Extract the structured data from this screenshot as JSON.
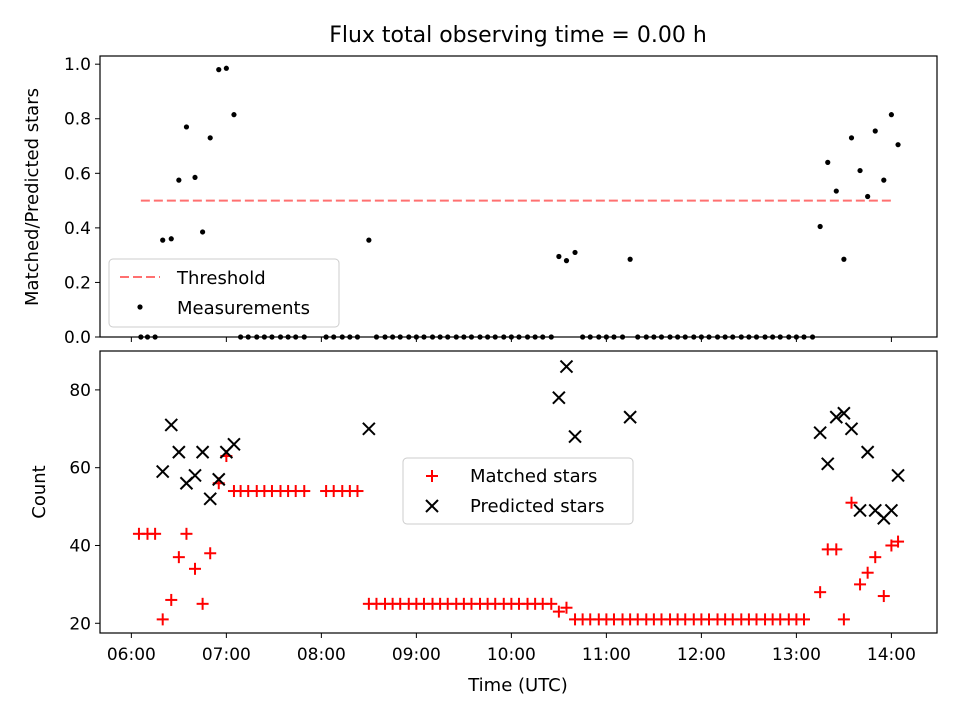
{
  "chart_data": [
    {
      "type": "scatter",
      "title": "Flux total observing time = 0.00 h",
      "ylabel": "Matched/Predicted stars",
      "xlabel": "",
      "xlim_hours": [
        5.67,
        14.48
      ],
      "ylim": [
        0,
        1.03
      ],
      "yticks": [
        "0.0",
        "0.2",
        "0.4",
        "0.6",
        "0.8",
        "1.0"
      ],
      "xticks": [
        "06:00",
        "07:00",
        "08:00",
        "09:00",
        "10:00",
        "11:00",
        "12:00",
        "13:00",
        "14:00"
      ],
      "legend_position": "lower-left",
      "threshold": {
        "name": "Threshold",
        "value": 0.5,
        "x_range_hours": [
          6.1,
          14.0
        ],
        "color": "#ff7070",
        "style": "dashed"
      },
      "measurements": {
        "name": "Measurements",
        "color": "#000000",
        "x_hours": [
          6.1,
          6.17,
          6.25,
          6.33,
          6.42,
          6.5,
          6.58,
          6.67,
          6.75,
          6.83,
          6.92,
          7.0,
          7.08,
          7.15,
          7.23,
          7.32,
          7.4,
          7.48,
          7.57,
          7.65,
          7.73,
          7.82,
          8.05,
          8.13,
          8.22,
          8.3,
          8.38,
          8.5,
          8.58,
          8.67,
          8.75,
          8.83,
          8.92,
          9.0,
          9.08,
          9.17,
          9.25,
          9.33,
          9.42,
          9.5,
          9.58,
          9.67,
          9.75,
          9.83,
          9.92,
          10.0,
          10.08,
          10.17,
          10.25,
          10.33,
          10.42,
          10.5,
          10.58,
          10.67,
          10.75,
          10.83,
          10.92,
          11.0,
          11.08,
          11.17,
          11.25,
          11.33,
          11.42,
          11.5,
          11.58,
          11.67,
          11.75,
          11.83,
          11.92,
          12.0,
          12.08,
          12.17,
          12.25,
          12.33,
          12.42,
          12.5,
          12.58,
          12.67,
          12.75,
          12.83,
          12.92,
          13.0,
          13.08,
          13.17,
          13.25,
          13.33,
          13.42,
          13.5,
          13.58,
          13.67,
          13.75,
          13.83,
          13.92,
          14.0,
          14.07
        ],
        "y": [
          0,
          0,
          0,
          0.355,
          0.36,
          0.575,
          0.77,
          0.585,
          0.385,
          0.73,
          0.98,
          0.985,
          0.815,
          0,
          0,
          0,
          0,
          0,
          0,
          0,
          0,
          0,
          0,
          0,
          0,
          0,
          0,
          0.355,
          0,
          0,
          0,
          0,
          0,
          0,
          0,
          0,
          0,
          0,
          0,
          0,
          0,
          0,
          0,
          0,
          0,
          0,
          0,
          0,
          0,
          0,
          0,
          0.295,
          0.28,
          0.31,
          0,
          0,
          0,
          0,
          0,
          0,
          0.285,
          0,
          0,
          0,
          0,
          0,
          0,
          0,
          0,
          0,
          0,
          0,
          0,
          0,
          0,
          0,
          0,
          0,
          0,
          0,
          0,
          0,
          0,
          0,
          0.405,
          0.64,
          0.535,
          0.285,
          0.73,
          0.61,
          0.515,
          0.755,
          0.575,
          0.815,
          0.705
        ]
      }
    },
    {
      "type": "scatter",
      "title": "",
      "ylabel": "Count",
      "xlabel": "Time (UTC)",
      "xlim_hours": [
        5.67,
        14.48
      ],
      "ylim": [
        17.5,
        90
      ],
      "yticks": [
        "20",
        "40",
        "60",
        "80"
      ],
      "xticks": [
        "06:00",
        "07:00",
        "08:00",
        "09:00",
        "10:00",
        "11:00",
        "12:00",
        "13:00",
        "14:00"
      ],
      "legend_position": "center",
      "matched": {
        "name": "Matched stars",
        "color": "#ff0000",
        "marker": "+",
        "x_hours": [
          6.08,
          6.17,
          6.25,
          6.33,
          6.42,
          6.5,
          6.58,
          6.67,
          6.75,
          6.83,
          6.92,
          7.0,
          7.08,
          7.15,
          7.23,
          7.32,
          7.4,
          7.48,
          7.57,
          7.65,
          7.73,
          7.82,
          8.05,
          8.13,
          8.22,
          8.3,
          8.38,
          8.5,
          8.58,
          8.67,
          8.75,
          8.83,
          8.92,
          9.0,
          9.08,
          9.17,
          9.25,
          9.33,
          9.42,
          9.5,
          9.58,
          9.67,
          9.75,
          9.83,
          9.92,
          10.0,
          10.08,
          10.17,
          10.25,
          10.33,
          10.42,
          10.5,
          10.58,
          10.67,
          10.75,
          10.83,
          10.92,
          11.0,
          11.08,
          11.17,
          11.25,
          11.33,
          11.42,
          11.5,
          11.58,
          11.67,
          11.75,
          11.83,
          11.92,
          12.0,
          12.08,
          12.17,
          12.25,
          12.33,
          12.42,
          12.5,
          12.58,
          12.67,
          12.75,
          12.83,
          12.92,
          13.0,
          13.08,
          13.25,
          13.33,
          13.42,
          13.5,
          13.58,
          13.67,
          13.75,
          13.83,
          13.92,
          14.0,
          14.07
        ],
        "y": [
          43,
          43,
          43,
          21,
          26,
          37,
          43,
          34,
          25,
          38,
          56,
          63,
          54,
          54,
          54,
          54,
          54,
          54,
          54,
          54,
          54,
          54,
          54,
          54,
          54,
          54,
          54,
          25,
          25,
          25,
          25,
          25,
          25,
          25,
          25,
          25,
          25,
          25,
          25,
          25,
          25,
          25,
          25,
          25,
          25,
          25,
          25,
          25,
          25,
          25,
          25,
          23,
          24,
          21,
          21,
          21,
          21,
          21,
          21,
          21,
          21,
          21,
          21,
          21,
          21,
          21,
          21,
          21,
          21,
          21,
          21,
          21,
          21,
          21,
          21,
          21,
          21,
          21,
          21,
          21,
          21,
          21,
          21,
          28,
          39,
          39,
          21,
          51,
          30,
          33,
          37,
          27,
          40,
          41
        ]
      },
      "predicted": {
        "name": "Predicted stars",
        "color": "#000000",
        "marker": "x",
        "x_hours": [
          6.33,
          6.42,
          6.5,
          6.58,
          6.67,
          6.75,
          6.83,
          6.92,
          7.0,
          7.08,
          8.5,
          10.5,
          10.58,
          10.67,
          11.25,
          13.25,
          13.33,
          13.42,
          13.5,
          13.58,
          13.67,
          13.75,
          13.83,
          13.92,
          14.0,
          14.07
        ],
        "y": [
          59,
          71,
          64,
          56,
          58,
          64,
          52,
          57,
          64,
          66,
          70,
          78,
          86,
          68,
          73,
          69,
          61,
          73,
          74,
          70,
          49,
          64,
          49,
          47,
          49,
          58
        ]
      }
    }
  ]
}
